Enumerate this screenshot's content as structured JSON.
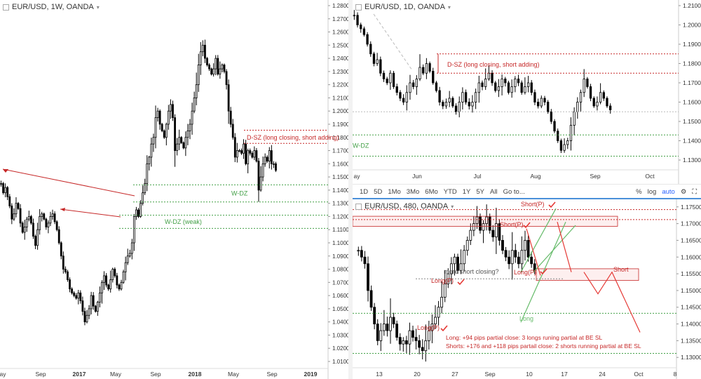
{
  "panes": {
    "weekly": {
      "title": "EUR/USD, 1W, OANDA"
    },
    "daily": {
      "title": "EUR/USD, 1D, OANDA"
    },
    "h480": {
      "title": "EUR/USD, 480, OANDA"
    }
  },
  "toolbar": {
    "timeframes": [
      "1D",
      "5D",
      "1Mo",
      "3Mo",
      "6Mo",
      "YTD",
      "1Y",
      "5Y",
      "All"
    ],
    "goto": "Go to...",
    "percent": "%",
    "log": "log",
    "auto": "auto"
  },
  "icons": [
    "collapse-icon",
    "caret-down-icon",
    "gear-icon",
    "fullscreen-icon"
  ],
  "colors": {
    "bull": "#ffffff",
    "bear": "#000000",
    "supply": "#c62828",
    "demand": "#43a047",
    "proj_red": "#e53935",
    "proj_green": "#66bb6a"
  },
  "chart_data": [
    {
      "id": "weekly",
      "type": "candlestick",
      "title": "EUR/USD, 1W, OANDA",
      "ylim": [
        1.0,
        1.285
      ],
      "y_ticks": [
        "1.2800",
        "1.2700",
        "1.2600",
        "1.2500",
        "1.2400",
        "1.2300",
        "1.2200",
        "1.2100",
        "1.2000",
        "1.1900",
        "1.1800",
        "1.1700",
        "1.1600",
        "1.1500",
        "1.1400",
        "1.1300",
        "1.1200",
        "1.1100",
        "1.1000",
        "1.0900",
        "1.0800",
        "1.0700",
        "1.0600",
        "1.0500",
        "1.0400",
        "1.0300",
        "1.0200",
        "1.0100"
      ],
      "x_ticks": [
        "ay",
        "Sep",
        "2017",
        "May",
        "Sep",
        "2018",
        "May",
        "Sep",
        "2019"
      ],
      "closes": [
        1.145,
        1.138,
        1.142,
        1.135,
        1.128,
        1.118,
        1.122,
        1.13,
        1.126,
        1.115,
        1.108,
        1.112,
        1.118,
        1.12,
        1.115,
        1.105,
        1.098,
        1.11,
        1.12,
        1.122,
        1.118,
        1.112,
        1.115,
        1.12,
        1.122,
        1.116,
        1.11,
        1.1,
        1.09,
        1.08,
        1.078,
        1.072,
        1.065,
        1.062,
        1.06,
        1.058,
        1.062,
        1.056,
        1.048,
        1.04,
        1.045,
        1.05,
        1.06,
        1.052,
        1.048,
        1.055,
        1.062,
        1.07,
        1.075,
        1.068,
        1.065,
        1.072,
        1.08,
        1.075,
        1.068,
        1.065,
        1.07,
        1.078,
        1.085,
        1.09,
        1.092,
        1.1,
        1.12,
        1.125,
        1.12,
        1.13,
        1.138,
        1.145,
        1.16,
        1.165,
        1.175,
        1.18,
        1.195,
        1.2,
        1.19,
        1.185,
        1.18,
        1.19,
        1.2,
        1.205,
        1.195,
        1.17,
        1.175,
        1.18,
        1.176,
        1.172,
        1.18,
        1.185,
        1.19,
        1.2,
        1.21,
        1.22,
        1.235,
        1.245,
        1.25,
        1.24,
        1.235,
        1.232,
        1.228,
        1.232,
        1.24,
        1.228,
        1.232,
        1.235,
        1.23,
        1.22,
        1.2,
        1.19,
        1.18,
        1.165,
        1.17,
        1.17,
        1.168,
        1.175,
        1.16,
        1.17,
        1.168,
        1.165,
        1.17,
        1.162,
        1.14,
        1.15,
        1.16,
        1.165,
        1.162,
        1.17,
        1.16,
        1.16,
        1.155
      ],
      "zones": [
        {
          "label": "D-SZ (long closing, short adding)",
          "kind": "supply",
          "from": 1.1755,
          "to": 1.1855
        },
        {
          "label": "W-DZ",
          "kind": "demand",
          "from": 1.131,
          "to": 1.144
        },
        {
          "label": "W-DZ (weak)",
          "kind": "demand",
          "from": 1.111,
          "to": 1.121
        }
      ]
    },
    {
      "id": "daily",
      "type": "candlestick",
      "title": "EUR/USD, 1D, OANDA",
      "ylim": [
        1.295,
        1.214
      ],
      "y_ticks": [
        "1.21000",
        "1.20000",
        "1.19000",
        "1.18000",
        "1.17000",
        "1.16000",
        "1.15000",
        "1.14000",
        "1.13000"
      ],
      "x_ticks": [
        "ay",
        "Jun",
        "Jul",
        "Aug",
        "Sep",
        "Oct"
      ],
      "zones": [
        {
          "label": "D-SZ (long closing, short adding)",
          "kind": "supply",
          "from": 1.175,
          "to": 1.185
        },
        {
          "label": "W-DZ",
          "kind": "demand",
          "from": 1.132,
          "to": 1.143
        }
      ]
    },
    {
      "id": "h480",
      "type": "candlestick",
      "title": "EUR/USD, 480, OANDA",
      "ylim": [
        1.129,
        1.176
      ],
      "y_ticks": [
        "1.17500",
        "1.17000",
        "1.16500",
        "1.16000",
        "1.15500",
        "1.15000",
        "1.14500",
        "1.14000",
        "1.13500",
        "1.13000"
      ],
      "x_ticks": [
        "13",
        "20",
        "27",
        "Sep",
        "10",
        "17",
        "24",
        "Oct",
        "8"
      ],
      "annotations": [
        "Short(P)",
        "Short(P)",
        "more short closing?",
        "Long(P)",
        "Long(P)",
        "Long(P)",
        "Short",
        "Long"
      ],
      "notes": [
        "Long: +94 pips partial close: 3 longs runing partial at BE SL",
        "Shorts: +176 and +118 pips partail close: 2 shorts running partial at BE SL"
      ]
    }
  ]
}
